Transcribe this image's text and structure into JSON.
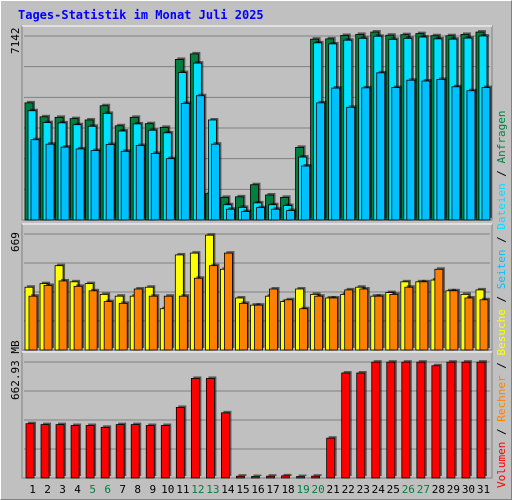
{
  "title": "Tages-Statistik im Monat Juli 2025",
  "colors": {
    "background": "#c0c0c0",
    "title": "#0000ff",
    "anfragen": "#008040",
    "dateien": "#00e0ff",
    "seiten": "#00c0ff",
    "besuche": "#ffff00",
    "rechner": "#ff8000",
    "volumen": "#ff0000",
    "weekend": "#008040",
    "weekday": "#000000"
  },
  "chart_data": [
    {
      "type": "bar",
      "ytick_label": "7142",
      "ylim": [
        0,
        7142
      ],
      "days": [
        1,
        2,
        3,
        4,
        5,
        6,
        7,
        8,
        9,
        10,
        11,
        12,
        13,
        14,
        15,
        16,
        17,
        18,
        19,
        20,
        21,
        22,
        23,
        24,
        25,
        26,
        27,
        28,
        29,
        30,
        31
      ],
      "weekend_days": [
        5,
        6,
        12,
        13,
        19,
        20,
        26,
        27
      ],
      "series": [
        {
          "name": "Anfragen",
          "values": [
            4450,
            3920,
            3900,
            3850,
            3800,
            4340,
            3580,
            3900,
            3660,
            3520,
            6100,
            6310,
            1000,
            860,
            880,
            1340,
            950,
            860,
            2760,
            6870,
            6880,
            7010,
            7050,
            7140,
            7020,
            7040,
            7080,
            7000,
            7000,
            7050,
            7140
          ]
        },
        {
          "name": "Dateien",
          "values": [
            4150,
            3700,
            3690,
            3620,
            3560,
            4050,
            3380,
            3650,
            3410,
            3310,
            5600,
            5960,
            3800,
            580,
            480,
            650,
            580,
            550,
            2390,
            6730,
            6690,
            6830,
            6900,
            6980,
            6860,
            6900,
            6950,
            6880,
            6870,
            6910,
            6990
          ]
        },
        {
          "name": "Seiten",
          "values": [
            3050,
            2880,
            2770,
            2700,
            2640,
            2870,
            2610,
            2830,
            2530,
            2330,
            4430,
            4720,
            2880,
            410,
            320,
            470,
            410,
            360,
            2050,
            4450,
            5010,
            4280,
            5020,
            5590,
            5030,
            5310,
            5280,
            5340,
            5060,
            4910,
            5030
          ]
        }
      ]
    },
    {
      "type": "bar",
      "ytick_label": "669",
      "ylim": [
        0,
        669
      ],
      "days": [
        1,
        2,
        3,
        4,
        5,
        6,
        7,
        8,
        9,
        10,
        11,
        12,
        13,
        14,
        15,
        16,
        17,
        18,
        19,
        20,
        21,
        22,
        23,
        24,
        25,
        26,
        27,
        28,
        29,
        30,
        31
      ],
      "weekend_days": [
        5,
        6,
        12,
        13,
        19,
        20,
        26,
        27
      ],
      "series": [
        {
          "name": "Besuche",
          "values": [
            350,
            370,
            470,
            380,
            370,
            310,
            300,
            300,
            350,
            230,
            530,
            540,
            640,
            450,
            290,
            250,
            300,
            270,
            340,
            310,
            290,
            310,
            350,
            300,
            320,
            380,
            380,
            390,
            330,
            310,
            335
          ]
        },
        {
          "name": "Rechner",
          "values": [
            300,
            360,
            385,
            355,
            330,
            270,
            260,
            340,
            300,
            300,
            300,
            400,
            470,
            540,
            260,
            250,
            340,
            280,
            230,
            300,
            290,
            335,
            340,
            300,
            310,
            350,
            380,
            450,
            330,
            290,
            280
          ]
        }
      ]
    },
    {
      "type": "bar",
      "ytick_label": "662.93 MB",
      "ylim": [
        0,
        662.93
      ],
      "days": [
        1,
        2,
        3,
        4,
        5,
        6,
        7,
        8,
        9,
        10,
        11,
        12,
        13,
        14,
        15,
        16,
        17,
        18,
        19,
        20,
        21,
        22,
        23,
        24,
        25,
        26,
        27,
        28,
        29,
        30,
        31
      ],
      "weekend_days": [
        5,
        6,
        12,
        13,
        19,
        20,
        26,
        27
      ],
      "series": [
        {
          "name": "Volumen",
          "values": [
            300,
            295,
            295,
            290,
            290,
            280,
            295,
            295,
            290,
            290,
            390,
            550,
            550,
            360,
            10,
            8,
            10,
            12,
            8,
            10,
            220,
            580,
            580,
            640,
            640,
            640,
            640,
            620,
            640,
            640,
            640
          ]
        }
      ]
    }
  ],
  "right_legend": {
    "top": [
      "Anfragen",
      "Dateien",
      "Seiten",
      "Besuche",
      "Rechner",
      "Volumen"
    ],
    "separator": " / "
  }
}
